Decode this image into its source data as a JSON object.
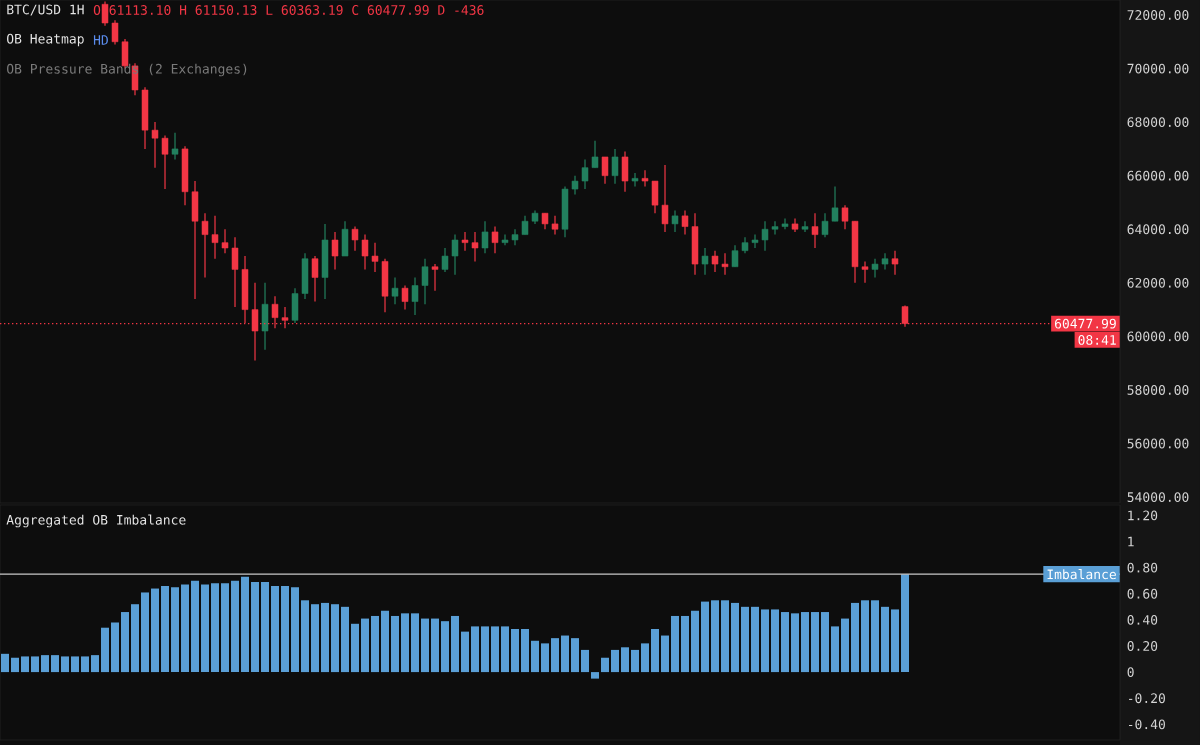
{
  "chart_data": [
    {
      "type": "candlestick",
      "title": "BTC/USD 1H",
      "annotations": [
        "O 61113.10 H 61150.13 L 60363.19 C 60477.99 D -436",
        "OB Heatmap",
        "HD",
        "OB Pressure Bands (2 Exchanges)",
        "08:41"
      ],
      "categories": [
        null,
        null,
        null,
        null,
        null,
        null,
        null,
        null,
        null,
        null,
        null,
        null,
        null,
        null,
        null,
        null,
        null,
        null,
        null,
        null,
        null,
        null,
        null,
        null,
        null,
        null,
        null,
        null,
        null,
        null,
        null,
        null,
        null,
        null,
        null,
        null,
        null,
        null,
        null,
        null,
        null,
        null,
        null,
        null,
        null,
        null,
        null,
        null,
        null,
        null,
        null,
        null,
        null,
        null,
        null,
        null,
        null,
        null,
        null,
        null,
        null,
        null,
        null,
        null,
        null,
        null,
        null,
        null,
        null,
        null,
        null,
        null,
        null,
        null,
        null,
        null,
        null,
        null,
        null,
        null,
        null,
        null,
        null,
        null,
        null,
        null,
        null,
        null,
        null,
        null,
        null,
        null,
        null,
        null,
        null,
        null,
        null,
        null,
        null,
        null,
        null,
        null,
        null,
        null,
        null,
        null,
        null,
        null,
        null,
        null,
        null,
        null
      ],
      "ohlc": [
        null,
        null,
        null,
        null,
        null,
        null,
        null,
        null,
        null,
        null,
        [
          72400,
          72500,
          71600,
          71700
        ],
        [
          71700,
          71800,
          70900,
          71000
        ],
        [
          71000,
          71100,
          70000,
          70100
        ],
        [
          70100,
          70200,
          69000,
          69200
        ],
        [
          69200,
          69300,
          67000,
          67700
        ],
        [
          67700,
          68000,
          66300,
          67400
        ],
        [
          67400,
          67500,
          65500,
          66800
        ],
        [
          66800,
          67600,
          66600,
          67000
        ],
        [
          67000,
          67100,
          64900,
          65400
        ],
        [
          65400,
          65800,
          61400,
          64300
        ],
        [
          64300,
          64600,
          62200,
          63800
        ],
        [
          63800,
          64500,
          62900,
          63500
        ],
        [
          63500,
          64000,
          63100,
          63300
        ],
        [
          63300,
          63700,
          61100,
          62500
        ],
        [
          62500,
          63000,
          60500,
          61000
        ],
        [
          61000,
          62000,
          59100,
          60200
        ],
        [
          60200,
          62000,
          59500,
          61200
        ],
        [
          61200,
          61500,
          60300,
          60700
        ],
        [
          60700,
          61100,
          60300,
          60600
        ],
        [
          60600,
          61800,
          60500,
          61600
        ],
        [
          61600,
          63100,
          61400,
          62900
        ],
        [
          62900,
          63000,
          61300,
          62200
        ],
        [
          62200,
          64200,
          61400,
          63600
        ],
        [
          63600,
          63900,
          62500,
          63000
        ],
        [
          63000,
          64300,
          63000,
          64000
        ],
        [
          64000,
          64100,
          63200,
          63600
        ],
        [
          63600,
          63800,
          62500,
          63000
        ],
        [
          63000,
          63500,
          62400,
          62800
        ],
        [
          62800,
          62900,
          60900,
          61500
        ],
        [
          61500,
          62200,
          61200,
          61800
        ],
        [
          61800,
          61900,
          61000,
          61300
        ],
        [
          61300,
          62200,
          60800,
          61900
        ],
        [
          61900,
          62900,
          61200,
          62600
        ],
        [
          62600,
          62700,
          61700,
          62500
        ],
        [
          62500,
          63300,
          62400,
          63000
        ],
        [
          63000,
          63800,
          62300,
          63600
        ],
        [
          63600,
          63900,
          63200,
          63500
        ],
        [
          63500,
          63900,
          62800,
          63300
        ],
        [
          63300,
          64300,
          63100,
          63900
        ],
        [
          63900,
          64100,
          63100,
          63500
        ],
        [
          63500,
          63800,
          63400,
          63600
        ],
        [
          63600,
          64000,
          63400,
          63800
        ],
        [
          63800,
          64500,
          63800,
          64300
        ],
        [
          64300,
          64700,
          64200,
          64600
        ],
        [
          64600,
          64600,
          64000,
          64200
        ],
        [
          64200,
          64500,
          63800,
          64000
        ],
        [
          64000,
          65600,
          63700,
          65500
        ],
        [
          65500,
          66000,
          65300,
          65800
        ],
        [
          65800,
          66600,
          65500,
          66300
        ],
        [
          66300,
          67300,
          66300,
          66700
        ],
        [
          66700,
          66700,
          65700,
          66000
        ],
        [
          66000,
          67000,
          65700,
          66700
        ],
        [
          66700,
          66900,
          65400,
          65800
        ],
        [
          65800,
          66100,
          65600,
          65900
        ],
        [
          65900,
          66200,
          65600,
          65800
        ],
        [
          65800,
          65800,
          64600,
          64900
        ],
        [
          64900,
          66400,
          63900,
          64200
        ],
        [
          64200,
          64700,
          63900,
          64500
        ],
        [
          64500,
          64700,
          63800,
          64100
        ],
        [
          64100,
          64600,
          62300,
          62700
        ],
        [
          62700,
          63300,
          62300,
          63000
        ],
        [
          63000,
          63200,
          62400,
          62700
        ],
        [
          62700,
          63100,
          62300,
          62600
        ],
        [
          62600,
          63400,
          62600,
          63200
        ],
        [
          63200,
          63700,
          63100,
          63500
        ],
        [
          63500,
          63800,
          63300,
          63600
        ],
        [
          63600,
          64300,
          63200,
          64000
        ],
        [
          64000,
          64300,
          63800,
          64100
        ],
        [
          64100,
          64400,
          64000,
          64200
        ],
        [
          64200,
          64400,
          63900,
          64000
        ],
        [
          64000,
          64300,
          63900,
          64100
        ],
        [
          64100,
          64600,
          63300,
          63800
        ],
        [
          63800,
          64600,
          63700,
          64300
        ],
        [
          64300,
          65600,
          64300,
          64800
        ],
        [
          64800,
          64900,
          64000,
          64300
        ],
        [
          64300,
          64300,
          62000,
          62600
        ],
        [
          62600,
          62800,
          62000,
          62500
        ],
        [
          62500,
          62900,
          62200,
          62700
        ],
        [
          62700,
          63100,
          62500,
          62900
        ],
        [
          62900,
          63200,
          62300,
          62700
        ],
        [
          61113.1,
          61150.13,
          60363.19,
          60477.99
        ],
        null,
        null,
        null,
        null,
        null,
        null,
        null,
        null,
        null,
        null,
        null,
        null,
        null,
        null,
        null,
        null,
        null,
        null,
        null,
        null,
        null
      ],
      "colors": [
        null,
        null,
        null,
        null,
        null,
        null,
        null,
        null,
        null,
        null,
        "#f23645",
        "#f23645",
        "#f23645",
        "#f23645",
        "#f23645",
        "#f23645",
        "#f23645",
        "#22805e",
        "#f23645",
        "#f23645",
        "#f23645",
        "#f23645",
        "#f23645",
        "#f23645",
        "#f23645",
        "#f23645",
        "#22805e",
        "#f23645",
        "#f23645",
        "#22805e",
        "#22805e",
        "#f23645",
        "#22805e",
        "#f23645",
        "#22805e",
        "#f23645",
        "#f23645",
        "#f23645",
        "#f23645",
        "#22805e",
        "#f23645",
        "#22805e",
        "#22805e",
        "#f23645",
        "#22805e",
        "#22805e",
        "#f23645",
        "#f23645",
        "#22805e",
        "#f23645",
        "#22805e",
        "#22805e",
        "#22805e",
        "#22805e",
        "#f23645",
        "#f23645",
        "#22805e",
        "#22805e",
        "#22805e",
        "#22805e",
        "#f23645",
        "#22805e",
        "#f23645",
        "#22805e",
        "#f23645",
        "#f23645",
        "#f23645",
        "#22805e",
        "#f23645",
        "#f23645",
        "#22805e",
        "#f23645",
        "#f23645",
        "#22805e",
        "#22805e",
        "#22805e",
        "#22805e",
        "#22805e",
        "#22805e",
        "#f23645",
        "#22805e",
        "#f23645",
        "#22805e",
        "#22805e",
        "#f23645",
        "#f23645",
        "#f23645",
        "#22805e",
        "#22805e",
        "#f23645",
        "#f23645",
        null,
        null,
        null,
        null,
        null,
        null,
        null,
        null,
        null,
        null,
        null,
        null,
        null,
        null,
        null,
        null,
        null,
        null,
        null,
        null,
        null
      ],
      "ylim": [
        53780,
        72560
      ],
      "yticks": [
        {
          "value": 54000,
          "label": "54000.00"
        },
        {
          "value": 56000,
          "label": "56000.00"
        },
        {
          "value": 58000,
          "label": "58000.00"
        },
        {
          "value": 60000,
          "label": "60000.00"
        },
        {
          "value": 62000,
          "label": "62000.00"
        },
        {
          "value": 64000,
          "label": "64000.00"
        },
        {
          "value": 66000,
          "label": "66000.00"
        },
        {
          "value": 68000,
          "label": "68000.00"
        },
        {
          "value": 70000,
          "label": "70000.00"
        },
        {
          "value": 72000,
          "label": "72000.00"
        }
      ],
      "ref_lines": [
        {
          "axis": "y",
          "value": 60477.99,
          "label": "60477.99",
          "color": "#f23645",
          "line_style": "dotted"
        }
      ]
    },
    {
      "type": "bar",
      "title": "Aggregated OB Imbalance",
      "categories": [
        null,
        null,
        null,
        null,
        null,
        null,
        null,
        null,
        null,
        null,
        null,
        null,
        null,
        null,
        null,
        null,
        null,
        null,
        null,
        null,
        null,
        null,
        null,
        null,
        null,
        null,
        null,
        null,
        null,
        null,
        null,
        null,
        null,
        null,
        null,
        null,
        null,
        null,
        null,
        null,
        null,
        null,
        null,
        null,
        null,
        null,
        null,
        null,
        null,
        null,
        null,
        null,
        null,
        null,
        null,
        null,
        null,
        null,
        null,
        null,
        null,
        null,
        null,
        null,
        null,
        null,
        null,
        null,
        null,
        null,
        null,
        null,
        null,
        null,
        null,
        null,
        null,
        null,
        null,
        null,
        null,
        null,
        null,
        null,
        null,
        null,
        null,
        null,
        null,
        null,
        null,
        null,
        null,
        null,
        null,
        null,
        null,
        null,
        null,
        null,
        null,
        null,
        null,
        null,
        null,
        null,
        null,
        null,
        null,
        null,
        null,
        null
      ],
      "values": [
        0.14,
        0.11,
        0.12,
        0.12,
        0.13,
        0.13,
        0.12,
        0.12,
        0.12,
        0.13,
        0.34,
        0.38,
        0.46,
        0.52,
        0.61,
        0.64,
        0.66,
        0.65,
        0.67,
        0.7,
        0.67,
        0.68,
        0.68,
        0.7,
        0.73,
        0.69,
        0.69,
        0.66,
        0.66,
        0.65,
        0.55,
        0.52,
        0.53,
        0.52,
        0.5,
        0.37,
        0.41,
        0.43,
        0.47,
        0.43,
        0.45,
        0.45,
        0.41,
        0.41,
        0.39,
        0.43,
        0.31,
        0.35,
        0.35,
        0.35,
        0.35,
        0.33,
        0.33,
        0.24,
        0.22,
        0.26,
        0.28,
        0.26,
        0.17,
        -0.05,
        0.11,
        0.17,
        0.19,
        0.17,
        0.22,
        0.33,
        0.28,
        0.43,
        0.43,
        0.47,
        0.54,
        0.55,
        0.55,
        0.53,
        0.5,
        0.5,
        0.48,
        0.48,
        0.46,
        0.45,
        0.46,
        0.46,
        0.46,
        0.35,
        0.41,
        0.53,
        0.55,
        0.55,
        0.5,
        0.48,
        0.75,
        null,
        null,
        null,
        null,
        null,
        null,
        null,
        null,
        null,
        null,
        null,
        null,
        null,
        null,
        null,
        null,
        null,
        null,
        null,
        null,
        null
      ],
      "color": "#5a9fd6",
      "ylim": [
        -0.52,
        1.28
      ],
      "yticks": [
        {
          "value": -0.4,
          "label": "-0.40"
        },
        {
          "value": -0.2,
          "label": "-0.20"
        },
        0,
        {
          "value": 0.2,
          "label": "0.20"
        },
        {
          "value": 0.4,
          "label": "0.40"
        },
        {
          "value": 0.6,
          "label": "0.60"
        },
        {
          "value": 0.8,
          "label": "0.80"
        },
        1,
        {
          "value": 1.2,
          "label": "1.20"
        }
      ],
      "ref_lines": [
        {
          "axis": "y",
          "value": 0.75,
          "label": "Imbalance",
          "color": "#c8c8c8",
          "line_style": "solid"
        }
      ]
    }
  ]
}
